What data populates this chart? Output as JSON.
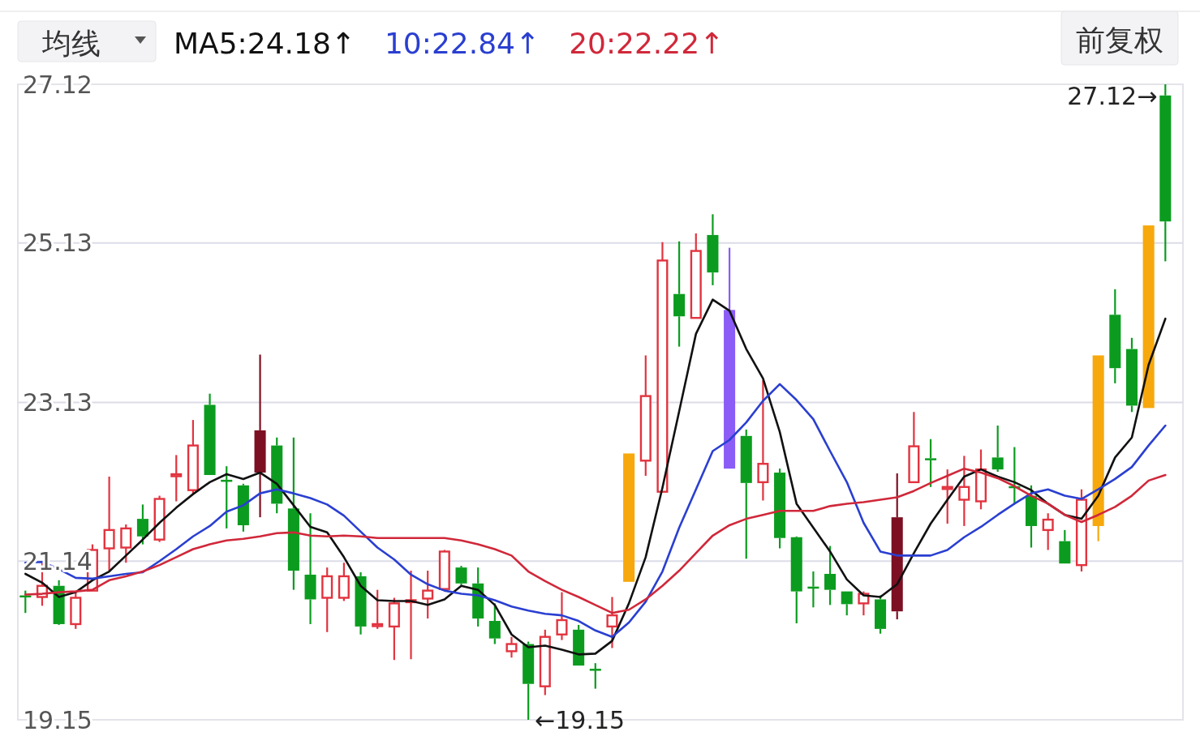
{
  "chart_data": {
    "type": "candlestick",
    "legend_title": "均线",
    "legend": "top left",
    "grid": "y",
    "ylim": [
      19.15,
      27.12
    ],
    "yticks": [
      19.15,
      21.14,
      23.13,
      25.13,
      27.12
    ],
    "annotations": [
      "前复权",
      "27.12→",
      "←19.15"
    ],
    "categories": [
      null,
      null,
      null,
      null,
      null,
      null,
      null,
      null,
      null,
      null,
      null,
      null,
      null,
      null,
      null,
      null,
      null,
      null,
      null,
      null,
      null,
      null,
      null,
      null,
      null,
      null,
      null,
      null,
      null,
      null,
      null,
      null,
      null,
      null,
      null,
      null,
      null,
      null,
      null,
      null,
      null,
      null,
      null,
      null,
      null,
      null,
      null,
      null,
      null,
      null,
      null,
      null,
      null,
      null,
      null,
      null,
      null,
      null,
      null,
      null,
      null,
      null,
      null,
      null,
      null,
      null,
      null,
      null,
      null
    ],
    "ohlc": [
      [
        20.71,
        20.77,
        20.49,
        20.69
      ],
      [
        20.69,
        21.12,
        20.58,
        20.83
      ],
      [
        20.83,
        20.9,
        20.34,
        20.35
      ],
      [
        20.35,
        20.75,
        20.29,
        20.68
      ],
      [
        20.77,
        21.35,
        20.77,
        21.28
      ],
      [
        21.3,
        22.2,
        21.02,
        21.53
      ],
      [
        21.31,
        21.6,
        21.12,
        21.55
      ],
      [
        21.67,
        21.85,
        21.35,
        21.45
      ],
      [
        21.41,
        21.96,
        21.38,
        21.92
      ],
      [
        22.21,
        22.47,
        21.89,
        22.23
      ],
      [
        22.03,
        22.91,
        21.98,
        22.59
      ],
      [
        23.1,
        23.24,
        22.22,
        22.22
      ],
      [
        22.16,
        22.33,
        21.55,
        22.14
      ],
      [
        22.09,
        22.11,
        21.51,
        21.59
      ],
      [
        22.78,
        23.73,
        21.69,
        22.25
      ],
      [
        22.59,
        22.69,
        21.74,
        21.86
      ],
      [
        21.8,
        22.69,
        20.78,
        21.02
      ],
      [
        20.97,
        21.74,
        20.35,
        20.66
      ],
      [
        20.68,
        21.06,
        20.25,
        20.95
      ],
      [
        20.68,
        21.12,
        20.64,
        20.95
      ],
      [
        20.95,
        21.0,
        20.22,
        20.32
      ],
      [
        20.33,
        20.78,
        20.29,
        20.35
      ],
      [
        20.32,
        20.68,
        19.9,
        20.61
      ],
      [
        20.63,
        21.02,
        19.91,
        20.65
      ],
      [
        20.67,
        21.02,
        20.42,
        20.77
      ],
      [
        20.79,
        21.28,
        20.79,
        21.26
      ],
      [
        21.06,
        21.08,
        20.84,
        20.86
      ],
      [
        20.86,
        21.06,
        20.32,
        20.42
      ],
      [
        20.39,
        20.61,
        20.1,
        20.17
      ],
      [
        20.01,
        20.19,
        19.93,
        20.1
      ],
      [
        20.1,
        20.13,
        19.15,
        19.6
      ],
      [
        19.57,
        20.28,
        19.46,
        20.19
      ],
      [
        20.22,
        20.75,
        20.15,
        20.4
      ],
      [
        20.28,
        20.34,
        19.83,
        19.83
      ],
      [
        19.79,
        19.86,
        19.54,
        19.77
      ],
      [
        20.32,
        20.69,
        20.05,
        20.46
      ],
      [
        20.88,
        22.49,
        20.88,
        22.49
      ],
      [
        22.4,
        23.72,
        22.21,
        23.21
      ],
      [
        22.01,
        25.14,
        22.01,
        24.91
      ],
      [
        24.49,
        25.15,
        23.83,
        24.21
      ],
      [
        24.19,
        25.25,
        24.19,
        25.03
      ],
      [
        25.23,
        25.49,
        24.6,
        24.76
      ],
      [
        24.29,
        25.07,
        22.3,
        22.3
      ],
      [
        22.71,
        22.79,
        21.17,
        22.12
      ],
      [
        22.13,
        23.41,
        21.9,
        22.36
      ],
      [
        22.25,
        22.3,
        21.3,
        21.43
      ],
      [
        21.44,
        21.45,
        20.36,
        20.76
      ],
      [
        20.82,
        21.01,
        20.56,
        20.8
      ],
      [
        20.98,
        21.33,
        20.59,
        20.78
      ],
      [
        20.76,
        20.76,
        20.46,
        20.6
      ],
      [
        20.61,
        20.76,
        20.46,
        20.73
      ],
      [
        20.66,
        20.71,
        20.23,
        20.29
      ],
      [
        20.51,
        22.24,
        20.41,
        21.69
      ],
      [
        22.13,
        23.01,
        22.13,
        22.58
      ],
      [
        22.43,
        22.67,
        22.07,
        22.41
      ],
      [
        22.05,
        22.29,
        21.61,
        22.07
      ],
      [
        21.91,
        22.46,
        21.58,
        22.07
      ],
      [
        21.89,
        22.54,
        21.79,
        22.29
      ],
      [
        22.44,
        22.84,
        22.26,
        22.29
      ],
      [
        22.08,
        22.57,
        21.86,
        22.06
      ],
      [
        21.96,
        22.09,
        21.31,
        21.58
      ],
      [
        21.53,
        21.74,
        21.28,
        21.66
      ],
      [
        21.39,
        21.53,
        21.11,
        21.11
      ],
      [
        21.09,
        22.04,
        21.01,
        21.91
      ],
      [
        21.58,
        23.72,
        21.39,
        23.72
      ],
      [
        24.23,
        24.55,
        23.37,
        23.56
      ],
      [
        23.8,
        23.94,
        23.01,
        23.09
      ],
      [
        23.06,
        25.35,
        23.06,
        25.35
      ],
      [
        26.98,
        27.12,
        24.9,
        25.4
      ]
    ],
    "colors": [
      "#0b9c1f",
      "#e2333f",
      "#0b9c1f",
      "#e2333f",
      "#e2333f",
      "#e2333f",
      "#e2333f",
      "#0b9c1f",
      "#e2333f",
      "#e2333f",
      "#e2333f",
      "#0b9c1f",
      "#0b9c1f",
      "#0b9c1f",
      "#7d0f22",
      "#0b9c1f",
      "#0b9c1f",
      "#0b9c1f",
      "#e2333f",
      "#e2333f",
      "#0b9c1f",
      "#e2333f",
      "#e2333f",
      "#e2333f",
      "#e2333f",
      "#e2333f",
      "#0b9c1f",
      "#0b9c1f",
      "#0b9c1f",
      "#e2333f",
      "#0b9c1f",
      "#e2333f",
      "#e2333f",
      "#0b9c1f",
      "#0b9c1f",
      "#e2333f",
      "#f7a80c",
      "#e2333f",
      "#e2333f",
      "#0b9c1f",
      "#e2333f",
      "#0b9c1f",
      "#8b5cf6",
      "#0b9c1f",
      "#e2333f",
      "#0b9c1f",
      "#0b9c1f",
      "#0b9c1f",
      "#0b9c1f",
      "#0b9c1f",
      "#e2333f",
      "#0b9c1f",
      "#7d0f22",
      "#e2333f",
      "#0b9c1f",
      "#e2333f",
      "#e2333f",
      "#e2333f",
      "#0b9c1f",
      "#0b9c1f",
      "#0b9c1f",
      "#e2333f",
      "#0b9c1f",
      "#e2333f",
      "#f7a80c",
      "#0b9c1f",
      "#0b9c1f",
      "#f7a80c",
      "#0b9c1f"
    ],
    "series": [
      {
        "name": "MA5:24.18↑",
        "type": "line",
        "color": "#111111",
        "values": [
          20.98,
          20.87,
          20.69,
          20.75,
          20.9,
          21.01,
          21.21,
          21.41,
          21.62,
          21.81,
          21.98,
          22.13,
          22.23,
          22.17,
          22.25,
          22.11,
          21.84,
          21.57,
          21.5,
          21.19,
          20.83,
          20.65,
          20.64,
          20.64,
          20.59,
          20.66,
          20.83,
          20.78,
          20.59,
          20.22,
          20.06,
          20.08,
          20.03,
          19.97,
          19.98,
          20.14,
          20.61,
          21.19,
          22.06,
          23.02,
          23.99,
          24.42,
          24.28,
          23.8,
          23.43,
          22.76,
          21.86,
          21.56,
          21.26,
          20.91,
          20.71,
          20.69,
          20.85,
          21.24,
          21.61,
          21.91,
          22.2,
          22.29,
          22.2,
          22.13,
          22.03,
          21.86,
          21.72,
          21.67,
          21.96,
          22.44,
          22.69,
          23.6,
          24.18
        ]
      },
      {
        "name": "10:22.84↑",
        "type": "line",
        "color": "#2a3fd1",
        "values": [
          21.12,
          21.13,
          21.04,
          20.93,
          20.92,
          20.95,
          20.98,
          21.0,
          21.14,
          21.29,
          21.45,
          21.58,
          21.76,
          21.84,
          21.99,
          22.04,
          21.99,
          21.93,
          21.85,
          21.71,
          21.51,
          21.31,
          21.16,
          20.97,
          20.85,
          20.77,
          20.73,
          20.71,
          20.65,
          20.57,
          20.52,
          20.48,
          20.46,
          20.39,
          20.27,
          20.19,
          20.37,
          20.63,
          21.01,
          21.56,
          22.04,
          22.52,
          22.66,
          22.88,
          23.15,
          23.36,
          23.16,
          22.92,
          22.52,
          22.13,
          21.62,
          21.26,
          21.21,
          21.21,
          21.21,
          21.28,
          21.44,
          21.57,
          21.72,
          21.86,
          21.99,
          22.04,
          21.96,
          21.92,
          22.04,
          22.17,
          22.32,
          22.59,
          22.84
        ]
      },
      {
        "name": "20:22.22↑",
        "type": "line",
        "color": "#d0283a",
        "values": [
          20.72,
          20.73,
          20.75,
          20.76,
          20.78,
          20.9,
          20.95,
          21.01,
          21.09,
          21.19,
          21.29,
          21.35,
          21.4,
          21.42,
          21.45,
          21.49,
          21.5,
          21.46,
          21.45,
          21.46,
          21.45,
          21.43,
          21.43,
          21.43,
          21.43,
          21.43,
          21.4,
          21.35,
          21.29,
          21.21,
          21.01,
          20.89,
          20.78,
          20.69,
          20.59,
          20.49,
          20.53,
          20.66,
          20.83,
          21.02,
          21.24,
          21.46,
          21.59,
          21.67,
          21.72,
          21.77,
          21.77,
          21.77,
          21.83,
          21.86,
          21.88,
          21.91,
          21.94,
          22.02,
          22.12,
          22.21,
          22.3,
          22.25,
          22.18,
          22.08,
          21.96,
          21.86,
          21.72,
          21.63,
          21.72,
          21.82,
          21.96,
          22.15,
          22.22
        ]
      }
    ]
  }
}
